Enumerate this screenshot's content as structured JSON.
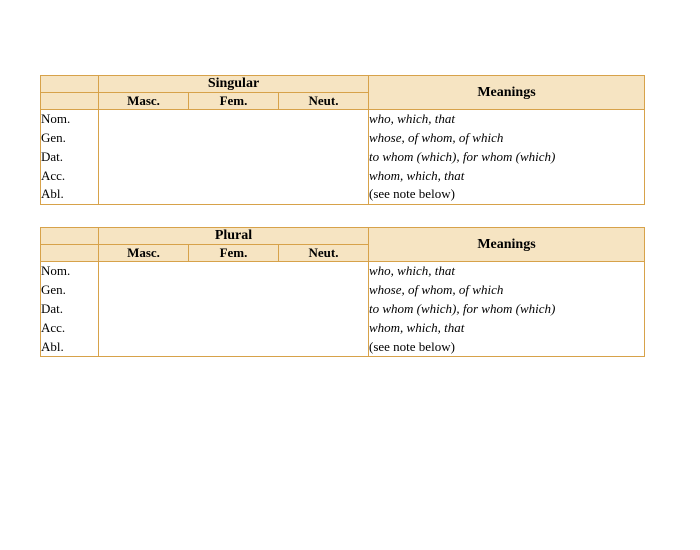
{
  "colors": {
    "header_bg": "#f6e4c2",
    "border": "#d7a24a"
  },
  "col_widths": {
    "case": 58,
    "gender": 90,
    "meanings": 276
  },
  "tables": [
    {
      "number_label": "Singular",
      "gender_labels": [
        "Masc.",
        "Fem.",
        "Neut."
      ],
      "meanings_header": "Meanings",
      "cases": [
        "Nom.",
        "Gen.",
        "Dat.",
        "Acc.",
        "Abl."
      ],
      "meanings": [
        {
          "italic": "who, which, that"
        },
        {
          "italic": "whose, of whom, of which"
        },
        {
          "italic": "to whom (which), for whom (which)"
        },
        {
          "italic": "whom, which, that"
        },
        {
          "plain": "(see note below)"
        }
      ]
    },
    {
      "number_label": "Plural",
      "gender_labels": [
        "Masc.",
        "Fem.",
        "Neut."
      ],
      "meanings_header": "Meanings",
      "cases": [
        "Nom.",
        "Gen.",
        "Dat.",
        "Acc.",
        "Abl."
      ],
      "meanings": [
        {
          "italic": "who, which, that"
        },
        {
          "italic": "whose, of whom, of which"
        },
        {
          "italic": "to whom (which), for whom (which)"
        },
        {
          "italic": "whom, which, that"
        },
        {
          "plain": "(see note below)"
        }
      ]
    }
  ]
}
